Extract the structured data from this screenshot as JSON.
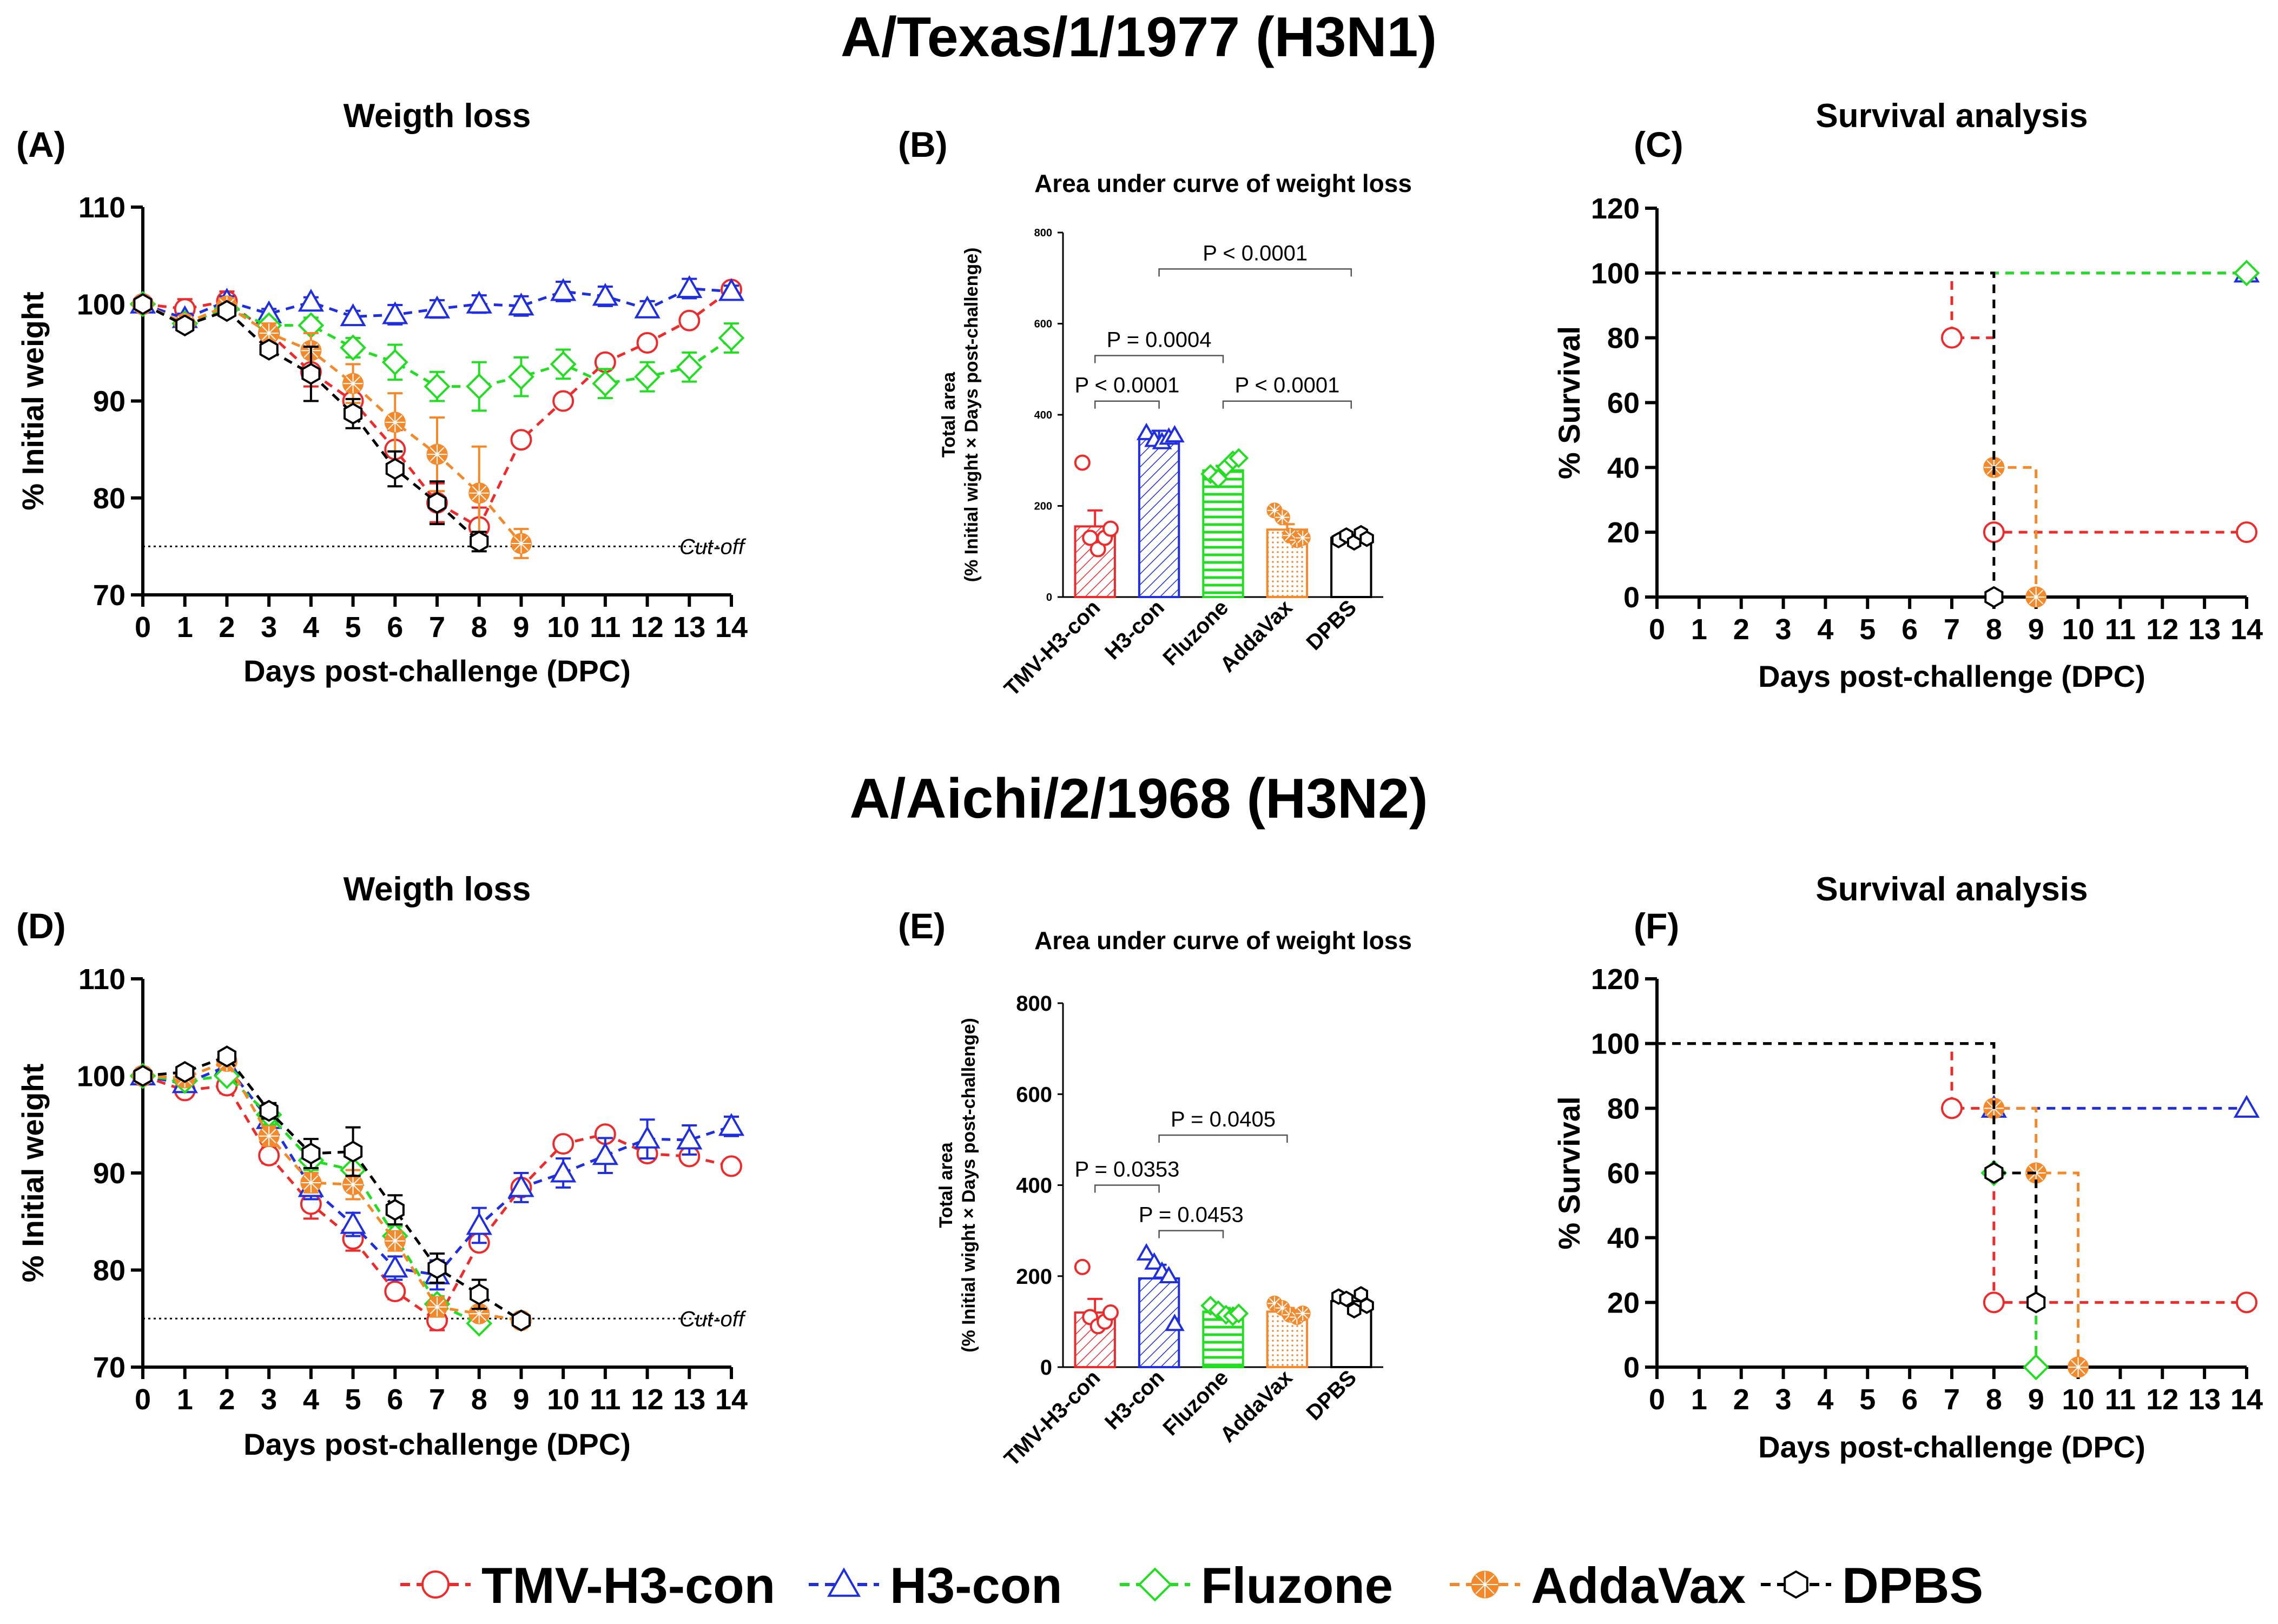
{
  "colors": {
    "TMV-H3-con": "#ee2b2b",
    "H3-con": "#1f2fe0",
    "Fluzone": "#22dd22",
    "AddaVax": "#f5892a",
    "DPBS": "#000000"
  },
  "legend": [
    "TMV-H3-con",
    "H3-con",
    "Fluzone",
    "AddaVax",
    "DPBS"
  ],
  "sections": [
    {
      "title": "A/Texas/1/1977 (H3N1)"
    },
    {
      "title": "A/Aichi/2/1968 (H3N2)"
    }
  ],
  "chart_data": [
    {
      "panel": "(A)",
      "type": "line",
      "title": "Weigth loss",
      "xlabel": "Days post-challenge (DPC)",
      "ylabel": "% Initial weight",
      "xlim": [
        0,
        14
      ],
      "ylim": [
        70,
        110
      ],
      "xticks": [
        0,
        1,
        2,
        3,
        4,
        5,
        6,
        7,
        8,
        9,
        10,
        11,
        12,
        13,
        14
      ],
      "yticks": [
        70,
        80,
        90,
        100,
        110
      ],
      "cutoff": {
        "value": 75,
        "label": "Cut-off"
      },
      "series": [
        {
          "name": "TMV-H3-con",
          "x": [
            0,
            1,
            2,
            3,
            4,
            5,
            6,
            7,
            8,
            9,
            10,
            11,
            12,
            13,
            14
          ],
          "y": [
            100,
            99.5,
            100.3,
            97,
            93,
            90,
            85,
            79.5,
            77,
            86,
            90,
            94,
            96,
            98.3,
            101.5
          ],
          "err": [
            0,
            1.0,
            1.0,
            1.0,
            1.5,
            1.5,
            2.0,
            2.0,
            2.0,
            0,
            0,
            0,
            0,
            0,
            0
          ]
        },
        {
          "name": "H3-con",
          "x": [
            0,
            1,
            2,
            3,
            4,
            5,
            6,
            7,
            8,
            9,
            10,
            11,
            12,
            13,
            14
          ],
          "y": [
            100,
            98.5,
            100.3,
            99,
            100.2,
            98.7,
            98.9,
            99.5,
            100,
            99.8,
            101.3,
            100.8,
            99.5,
            101.6,
            101.3
          ],
          "err": [
            0,
            0.5,
            0.5,
            0.5,
            0.5,
            0.6,
            1.0,
            0.9,
            0.9,
            1.0,
            1.0,
            1.0,
            0.8,
            1.0,
            0.6
          ]
        },
        {
          "name": "Fluzone",
          "x": [
            0,
            1,
            2,
            3,
            4,
            5,
            6,
            7,
            8,
            9,
            10,
            11,
            12,
            13,
            14
          ],
          "y": [
            100,
            98,
            99.5,
            97.8,
            97.8,
            95.5,
            94,
            91.5,
            91.5,
            92.5,
            93.8,
            91.8,
            92.5,
            93.5,
            96.5
          ],
          "err": [
            0,
            0.5,
            0.5,
            0.6,
            0.8,
            1.0,
            1.8,
            1.5,
            2.5,
            2.0,
            1.5,
            1.5,
            1.5,
            1.5,
            1.5
          ]
        },
        {
          "name": "AddaVax",
          "x": [
            0,
            1,
            2,
            3,
            4,
            5,
            6,
            7,
            8,
            9
          ],
          "y": [
            100,
            98,
            99.8,
            97,
            95.2,
            91.8,
            87.8,
            84.5,
            80.5,
            75.3
          ],
          "err": [
            0,
            0.6,
            0.8,
            1.0,
            1.8,
            2.0,
            3.0,
            3.8,
            4.8,
            1.5
          ]
        },
        {
          "name": "DPBS",
          "x": [
            0,
            1,
            2,
            3,
            4,
            5,
            6,
            7,
            8
          ],
          "y": [
            100,
            97.8,
            99.3,
            95.3,
            92.8,
            88.7,
            83,
            79.5,
            75.5
          ],
          "err": [
            0,
            0.5,
            0.5,
            0.6,
            2.8,
            1.5,
            1.8,
            2.2,
            1.0
          ]
        }
      ]
    },
    {
      "panel": "(B)",
      "type": "bar",
      "title": "Area under curve of weight loss",
      "ylabel": "Total area",
      "ylabel2": "(% Initial wight × Days post-challenge)",
      "ylim": [
        0,
        800
      ],
      "yticks": [
        0,
        200,
        400,
        600,
        800
      ],
      "categories": [
        "TMV-H3-con",
        "H3-con",
        "Fluzone",
        "AddaVax",
        "DPBS"
      ],
      "values": [
        155,
        350,
        278,
        148,
        130
      ],
      "errors": [
        35,
        15,
        10,
        12,
        6
      ],
      "points": [
        [
          295,
          130,
          105,
          130,
          150
        ],
        [
          360,
          345,
          340,
          350,
          355
        ],
        [
          270,
          260,
          285,
          300,
          305
        ],
        [
          190,
          175,
          135,
          125,
          130
        ],
        [
          125,
          135,
          120,
          140,
          128
        ]
      ],
      "comparisons": [
        {
          "a": 0,
          "b": 1,
          "label": "P < 0.0001",
          "y": 430
        },
        {
          "a": 0,
          "b": 2,
          "label": "P = 0.0004",
          "y": 530
        },
        {
          "a": 1,
          "b": 4,
          "label": "P < 0.0001",
          "y": 720
        },
        {
          "a": 2,
          "b": 4,
          "label": "P < 0.0001",
          "y": 430
        }
      ]
    },
    {
      "panel": "(C)",
      "type": "line",
      "title": "Survival analysis",
      "xlabel": "Days post-challenge (DPC)",
      "ylabel": "% Survival",
      "xlim": [
        0,
        14
      ],
      "ylim": [
        0,
        120
      ],
      "xticks": [
        0,
        1,
        2,
        3,
        4,
        5,
        6,
        7,
        8,
        9,
        10,
        11,
        12,
        13,
        14
      ],
      "yticks": [
        0,
        20,
        40,
        60,
        80,
        100,
        120
      ],
      "series": [
        {
          "name": "TMV-H3-con",
          "x": [
            0,
            7,
            8,
            14
          ],
          "y": [
            100,
            80,
            20,
            20
          ]
        },
        {
          "name": "H3-con",
          "x": [
            0,
            14
          ],
          "y": [
            100,
            100
          ]
        },
        {
          "name": "Fluzone",
          "x": [
            0,
            14
          ],
          "y": [
            100,
            100
          ]
        },
        {
          "name": "AddaVax",
          "x": [
            0,
            8,
            9
          ],
          "y": [
            100,
            40,
            0
          ]
        },
        {
          "name": "DPBS",
          "x": [
            0,
            8
          ],
          "y": [
            100,
            0
          ]
        }
      ]
    },
    {
      "panel": "(D)",
      "type": "line",
      "title": "Weigth loss",
      "xlabel": "Days post-challenge (DPC)",
      "ylabel": "% Initial weight",
      "xlim": [
        0,
        14
      ],
      "ylim": [
        70,
        110
      ],
      "xticks": [
        0,
        1,
        2,
        3,
        4,
        5,
        6,
        7,
        8,
        9,
        10,
        11,
        12,
        13,
        14
      ],
      "yticks": [
        70,
        80,
        90,
        100,
        110
      ],
      "cutoff": {
        "value": 75,
        "label": "Cut-off"
      },
      "series": [
        {
          "name": "TMV-H3-con",
          "x": [
            0,
            1,
            2,
            3,
            4,
            5,
            6,
            7,
            8,
            9,
            10,
            11,
            12,
            13,
            14
          ],
          "y": [
            100,
            98.5,
            99,
            91.8,
            86.8,
            83.2,
            77.8,
            74.8,
            82.8,
            88.5,
            93,
            94,
            92,
            91.7,
            90.7
          ],
          "err": [
            0,
            0.5,
            0.8,
            0.8,
            1.5,
            1.2,
            0.8,
            1.0,
            0,
            0,
            0,
            0,
            0,
            0,
            0
          ]
        },
        {
          "name": "H3-con",
          "x": [
            0,
            1,
            2,
            3,
            4,
            5,
            6,
            7,
            8,
            9,
            10,
            11,
            12,
            13,
            14
          ],
          "y": [
            100,
            99.2,
            101,
            95.5,
            88.5,
            84.7,
            80.2,
            79.5,
            84.6,
            88.5,
            90,
            91.8,
            93.5,
            93.4,
            94.8
          ],
          "err": [
            0,
            0.5,
            0.8,
            1.0,
            1.2,
            1.2,
            1.2,
            1.5,
            1.8,
            1.5,
            1.5,
            1.8,
            2.0,
            1.5,
            1.0
          ]
        },
        {
          "name": "Fluzone",
          "x": [
            0,
            1,
            2,
            3,
            4,
            5,
            6,
            7,
            8
          ],
          "y": [
            100,
            99.5,
            100,
            96,
            91.3,
            90.3,
            83.5,
            76.5,
            74.5
          ],
          "err": [
            0,
            0.5,
            0.5,
            1.0,
            1.0,
            1.5,
            1.0,
            0.8,
            0
          ]
        },
        {
          "name": "AddaVax",
          "x": [
            0,
            1,
            2,
            3,
            4,
            5,
            6,
            7,
            8,
            9
          ],
          "y": [
            100,
            99.8,
            101.5,
            93.8,
            89,
            88.8,
            83,
            76.2,
            75.5,
            74.8
          ],
          "err": [
            0,
            0.5,
            0.8,
            1.0,
            1.0,
            1.5,
            1.0,
            1.0,
            0.5,
            0
          ]
        },
        {
          "name": "DPBS",
          "x": [
            0,
            1,
            2,
            3,
            4,
            5,
            6,
            7,
            8,
            9
          ],
          "y": [
            100,
            100.4,
            102,
            96.4,
            92,
            92.2,
            86.2,
            80.2,
            77.5,
            74.8
          ],
          "err": [
            0,
            0.5,
            0.5,
            0.8,
            1.5,
            2.5,
            1.5,
            1.5,
            1.5,
            0
          ]
        }
      ]
    },
    {
      "panel": "(E)",
      "type": "bar",
      "title": "Area under curve of weight loss",
      "ylabel": "Total area",
      "ylabel2": "(% Initial wight × Days post-challenge)",
      "ylim": [
        0,
        800
      ],
      "yticks": [
        0,
        200,
        400,
        600,
        800
      ],
      "categories": [
        "TMV-H3-con",
        "H3-con",
        "Fluzone",
        "AddaVax",
        "DPBS"
      ],
      "values": [
        120,
        195,
        122,
        122,
        145
      ],
      "errors": [
        30,
        30,
        8,
        8,
        10
      ],
      "points": [
        [
          220,
          110,
          90,
          100,
          120
        ],
        [
          250,
          230,
          210,
          200,
          95
        ],
        [
          135,
          125,
          115,
          112,
          118
        ],
        [
          140,
          130,
          115,
          110,
          118
        ],
        [
          155,
          150,
          125,
          160,
          135
        ]
      ],
      "comparisons": [
        {
          "a": 0,
          "b": 1,
          "label": "P = 0.0353",
          "y": 400
        },
        {
          "a": 1,
          "b": 2,
          "label": "P = 0.0453",
          "y": 300
        },
        {
          "a": 1,
          "b": 3,
          "label": "P = 0.0405",
          "y": 510
        }
      ]
    },
    {
      "panel": "(F)",
      "type": "line",
      "title": "Survival analysis",
      "xlabel": "Days post-challenge (DPC)",
      "ylabel": "% Survival",
      "xlim": [
        0,
        14
      ],
      "ylim": [
        0,
        120
      ],
      "xticks": [
        0,
        1,
        2,
        3,
        4,
        5,
        6,
        7,
        8,
        9,
        10,
        11,
        12,
        13,
        14
      ],
      "yticks": [
        0,
        20,
        40,
        60,
        80,
        100,
        120
      ],
      "series": [
        {
          "name": "TMV-H3-con",
          "x": [
            0,
            7,
            8,
            14
          ],
          "y": [
            100,
            80,
            20,
            20
          ]
        },
        {
          "name": "H3-con",
          "x": [
            0,
            8,
            14
          ],
          "y": [
            100,
            80,
            80
          ]
        },
        {
          "name": "Fluzone",
          "x": [
            0,
            8,
            9
          ],
          "y": [
            100,
            60,
            0
          ]
        },
        {
          "name": "AddaVax",
          "x": [
            0,
            8,
            9,
            10
          ],
          "y": [
            100,
            80,
            60,
            0
          ]
        },
        {
          "name": "DPBS",
          "x": [
            0,
            8,
            9
          ],
          "y": [
            100,
            60,
            20
          ]
        }
      ]
    }
  ]
}
